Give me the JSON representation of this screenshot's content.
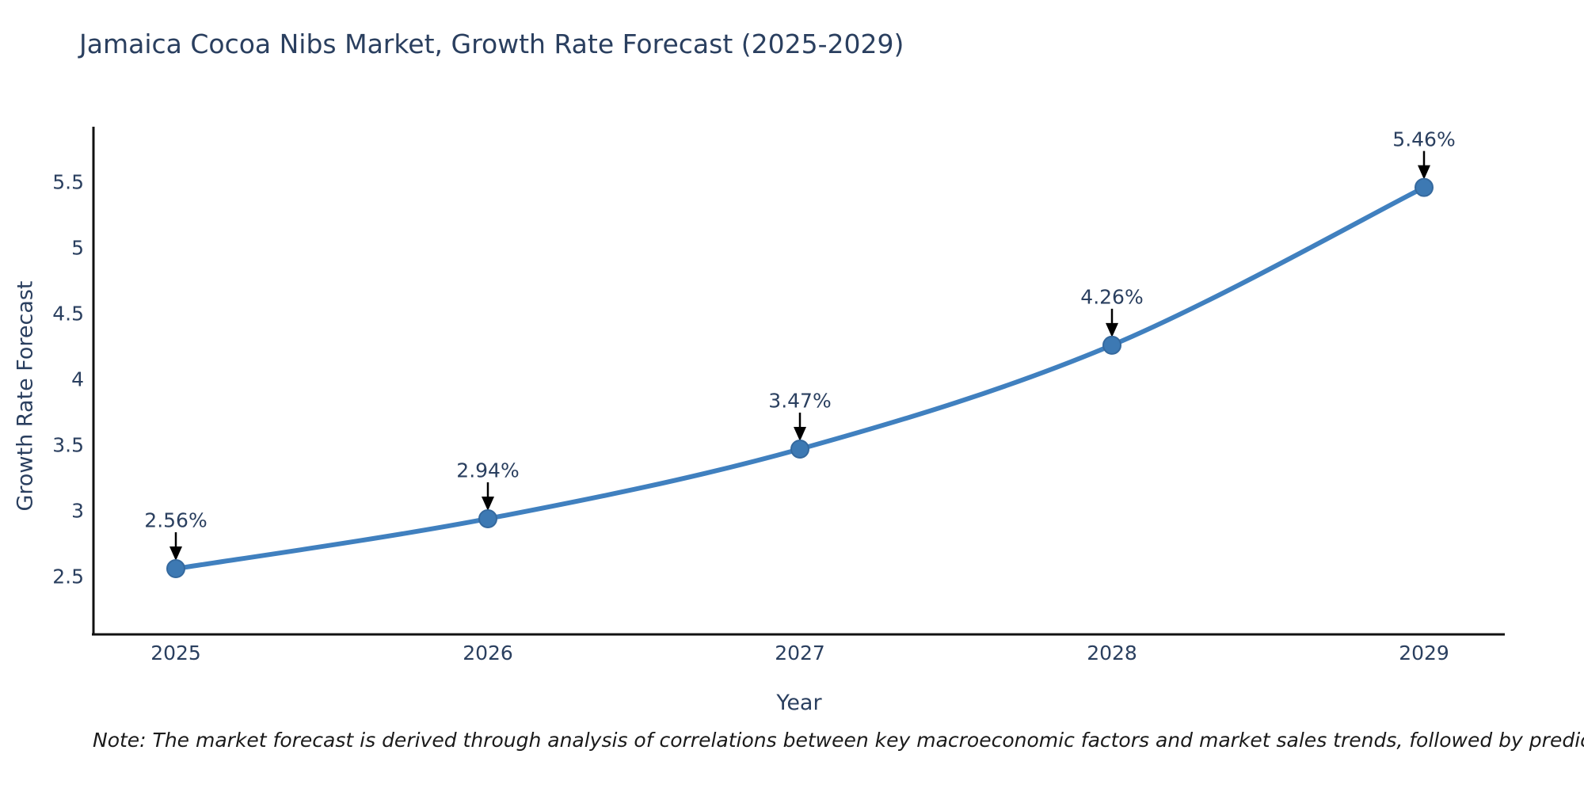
{
  "title": "Jamaica Cocoa Nibs Market, Growth Rate Forecast (2025-2029)",
  "note": "Note: The market forecast is derived through analysis of correlations between key macroeconomic factors and market sales trends, followed by predictive modeling to project future sales",
  "chart_data": {
    "type": "line",
    "title": "Jamaica Cocoa Nibs Market, Growth Rate Forecast (2025-2029)",
    "xlabel": "Year",
    "ylabel": "Growth Rate Forecast",
    "categories": [
      "2025",
      "2026",
      "2027",
      "2028",
      "2029"
    ],
    "values": [
      2.56,
      2.94,
      3.47,
      4.26,
      5.46
    ],
    "point_labels": [
      "2.56%",
      "2.94%",
      "3.47%",
      "4.26%",
      "5.46%"
    ],
    "yticks": [
      2.5,
      3,
      3.5,
      4,
      4.5,
      5,
      5.5
    ],
    "ylim": [
      2.06,
      5.92
    ],
    "line_shape": "spline",
    "grid": false,
    "legend": "none",
    "colors": {
      "line": "#4080bf",
      "marker": "#3d79b3",
      "marker_edge": "#35699e",
      "arrow": "#000000",
      "axis": "#111111",
      "label_text": "#2a3f5f",
      "note_text": "#1a1a1a",
      "background": "#ffffff"
    }
  }
}
